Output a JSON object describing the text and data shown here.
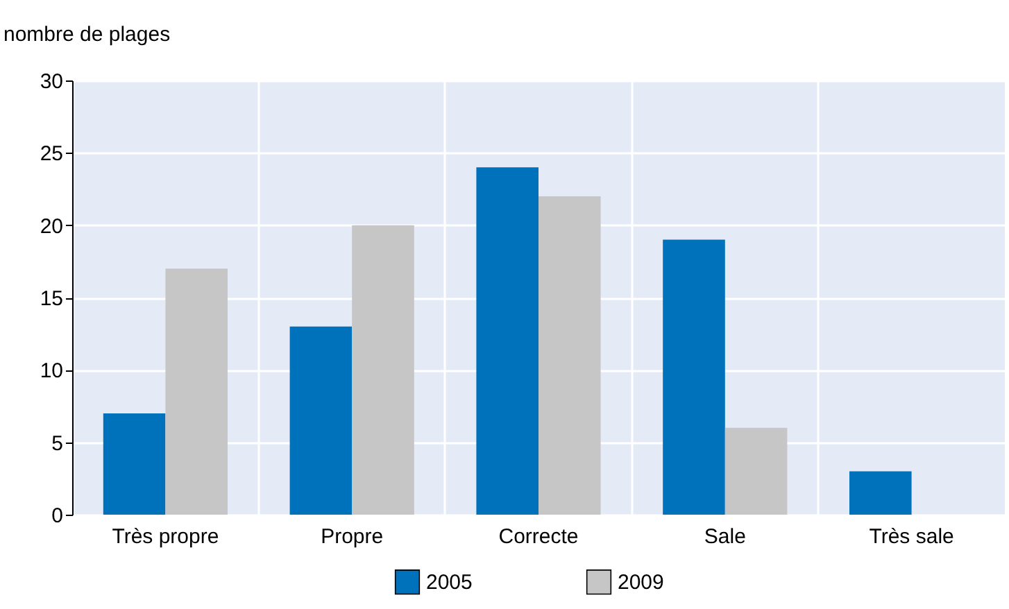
{
  "chart_data": {
    "type": "bar",
    "ylabel": "nombre de plages",
    "categories": [
      "Très propre",
      "Propre",
      "Correcte",
      "Sale",
      "Très sale"
    ],
    "series": [
      {
        "name": "2005",
        "color": "#0072bc",
        "values": [
          7,
          13,
          24,
          19,
          3
        ]
      },
      {
        "name": "2009",
        "color": "#c6c6c6",
        "values": [
          17,
          20,
          22,
          6,
          0
        ]
      }
    ],
    "ylim": [
      0,
      30
    ],
    "yticks": [
      0,
      5,
      10,
      15,
      20,
      25,
      30
    ],
    "grid": true,
    "legend": "bottom"
  }
}
